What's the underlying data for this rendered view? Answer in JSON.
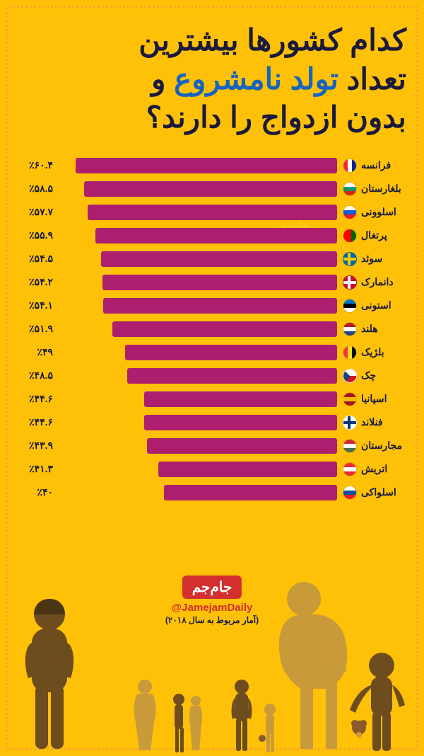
{
  "title": {
    "line1": "کدام کشورها بیشترین",
    "line2_a": "تعداد ",
    "line2_highlight": "تولد نامشروع",
    "line2_b": " و",
    "line3": "بدون ازدواج را دارند؟"
  },
  "chart": {
    "type": "bar",
    "max_value": 65,
    "bar_color": "#ad1e6e",
    "rows": [
      {
        "country": "فرانسه",
        "value": 60.4,
        "label": "٪۶۰.۴",
        "flag": [
          [
            "#002395",
            "#ffffff",
            "#ed2939"
          ],
          "v"
        ]
      },
      {
        "country": "بلغارستان",
        "value": 58.5,
        "label": "٪۵۸.۵",
        "flag": [
          [
            "#ffffff",
            "#00966e",
            "#d62612"
          ],
          "h"
        ]
      },
      {
        "country": "اسلوونی",
        "value": 57.7,
        "label": "٪۵۷.۷",
        "flag": [
          [
            "#ffffff",
            "#005ce5",
            "#ed1c24"
          ],
          "h"
        ]
      },
      {
        "country": "پرتغال",
        "value": 55.9,
        "label": "٪۵۵.۹",
        "flag": [
          [
            "#006600",
            "#ff0000"
          ],
          "v2"
        ]
      },
      {
        "country": "سوئد",
        "value": 54.5,
        "label": "٪۵۴.۵",
        "flag": [
          [
            "#006aa7",
            "#fecc02"
          ],
          "cross"
        ]
      },
      {
        "country": "دانمارک",
        "value": 54.2,
        "label": "٪۵۴.۲",
        "flag": [
          [
            "#c8102e",
            "#ffffff"
          ],
          "cross"
        ]
      },
      {
        "country": "استونی",
        "value": 54.1,
        "label": "٪۵۴.۱",
        "flag": [
          [
            "#0072ce",
            "#000000",
            "#ffffff"
          ],
          "h"
        ]
      },
      {
        "country": "هلند",
        "value": 51.9,
        "label": "٪۵۱.۹",
        "flag": [
          [
            "#ae1c28",
            "#ffffff",
            "#21468b"
          ],
          "h"
        ]
      },
      {
        "country": "بلژیک",
        "value": 49.0,
        "label": "٪۴۹",
        "flag": [
          [
            "#000000",
            "#fdda24",
            "#ef3340"
          ],
          "v"
        ]
      },
      {
        "country": "چک",
        "value": 48.5,
        "label": "٪۴۸.۵",
        "flag": [
          [
            "#ffffff",
            "#d7141a"
          ],
          "h2b"
        ]
      },
      {
        "country": "اسپانیا",
        "value": 44.6,
        "label": "٪۴۴.۶",
        "flag": [
          [
            "#aa151b",
            "#f1bf00",
            "#aa151b"
          ],
          "h"
        ]
      },
      {
        "country": "فنلاند",
        "value": 44.6,
        "label": "٪۴۴.۶",
        "flag": [
          [
            "#ffffff",
            "#003580"
          ],
          "cross"
        ]
      },
      {
        "country": "مجارستان",
        "value": 43.9,
        "label": "٪۴۳.۹",
        "flag": [
          [
            "#cd2a3e",
            "#ffffff",
            "#436f4d"
          ],
          "h"
        ]
      },
      {
        "country": "اتریش",
        "value": 41.3,
        "label": "٪۴۱.۳",
        "flag": [
          [
            "#ed2939",
            "#ffffff",
            "#ed2939"
          ],
          "h"
        ]
      },
      {
        "country": "اسلواکی",
        "value": 40.0,
        "label": "٪۴۰",
        "flag": [
          [
            "#ffffff",
            "#0b4ea2",
            "#ee1c25"
          ],
          "h"
        ]
      }
    ]
  },
  "footer": {
    "logo_text": "جام‌جم",
    "handle": "@JamejamDaily",
    "note": "(آمار مربوط به سال ۲۰۱۸)"
  },
  "watermark": {
    "line1": "جام‌جم",
    "line2": "@JamejamDaily"
  },
  "colors": {
    "background": "#ffc107",
    "title_text": "#1a1a3e",
    "highlight": "#1565c0",
    "accent_red": "#d32f2f",
    "person_dark": "#6d4c1e",
    "person_light": "#c99a3a"
  }
}
